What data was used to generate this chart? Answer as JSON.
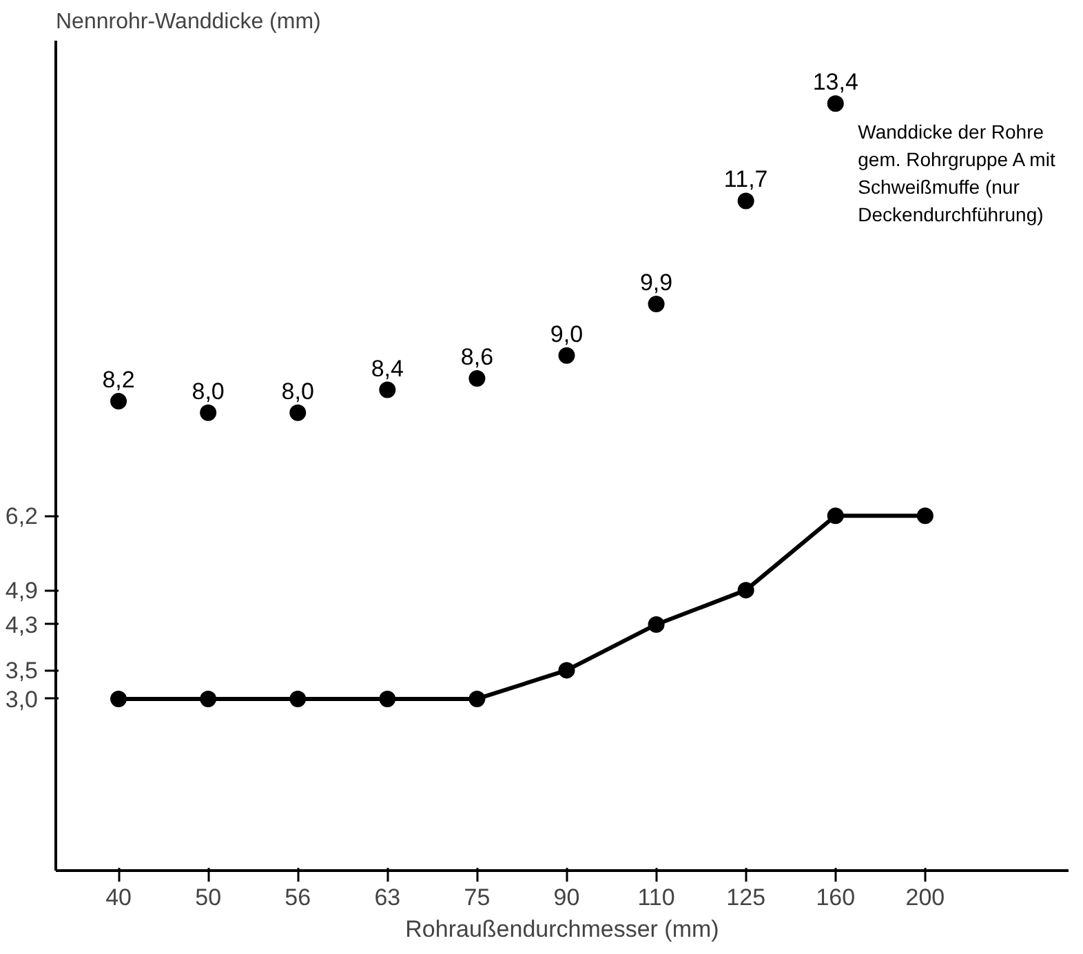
{
  "chart_data": {
    "type": "line",
    "xlabel": "Rohraußendurchmesser (mm)",
    "ylabel": "Nennrohr-Wanddicke (mm)",
    "categories": [
      "40",
      "50",
      "56",
      "63",
      "75",
      "90",
      "110",
      "125",
      "160",
      "200"
    ],
    "series": [
      {
        "color": "#000000",
        "values": [
          3.0,
          3.0,
          3.0,
          3.0,
          3.0,
          3.5,
          4.3,
          4.9,
          6.2,
          6.2
        ]
      },
      {
        "type": "scatter",
        "name": "Wanddicke der Rohre gem. Rohrgruppe A mit Schweißmuffe (nur Deckendurchführung)",
        "color": "#000000",
        "values": [
          8.2,
          8.0,
          8.0,
          8.4,
          8.6,
          9.0,
          9.9,
          11.7,
          13.4,
          null
        ],
        "value_labels": [
          "8,2",
          "8,0",
          "8,0",
          "8,4",
          "8,6",
          "9,0",
          "9,9",
          "11,7",
          "13,4",
          null
        ]
      }
    ],
    "ylim": [
      0,
      14.5
    ],
    "yticks": [
      {
        "value": 3.0,
        "label": "3,0"
      },
      {
        "value": 3.5,
        "label": "3,5"
      },
      {
        "value": 4.3,
        "label": "4,3"
      },
      {
        "value": 4.9,
        "label": "4,9"
      },
      {
        "value": 6.2,
        "label": "6,2"
      }
    ],
    "marker": "circle",
    "line_style": "solid",
    "grid": false
  }
}
